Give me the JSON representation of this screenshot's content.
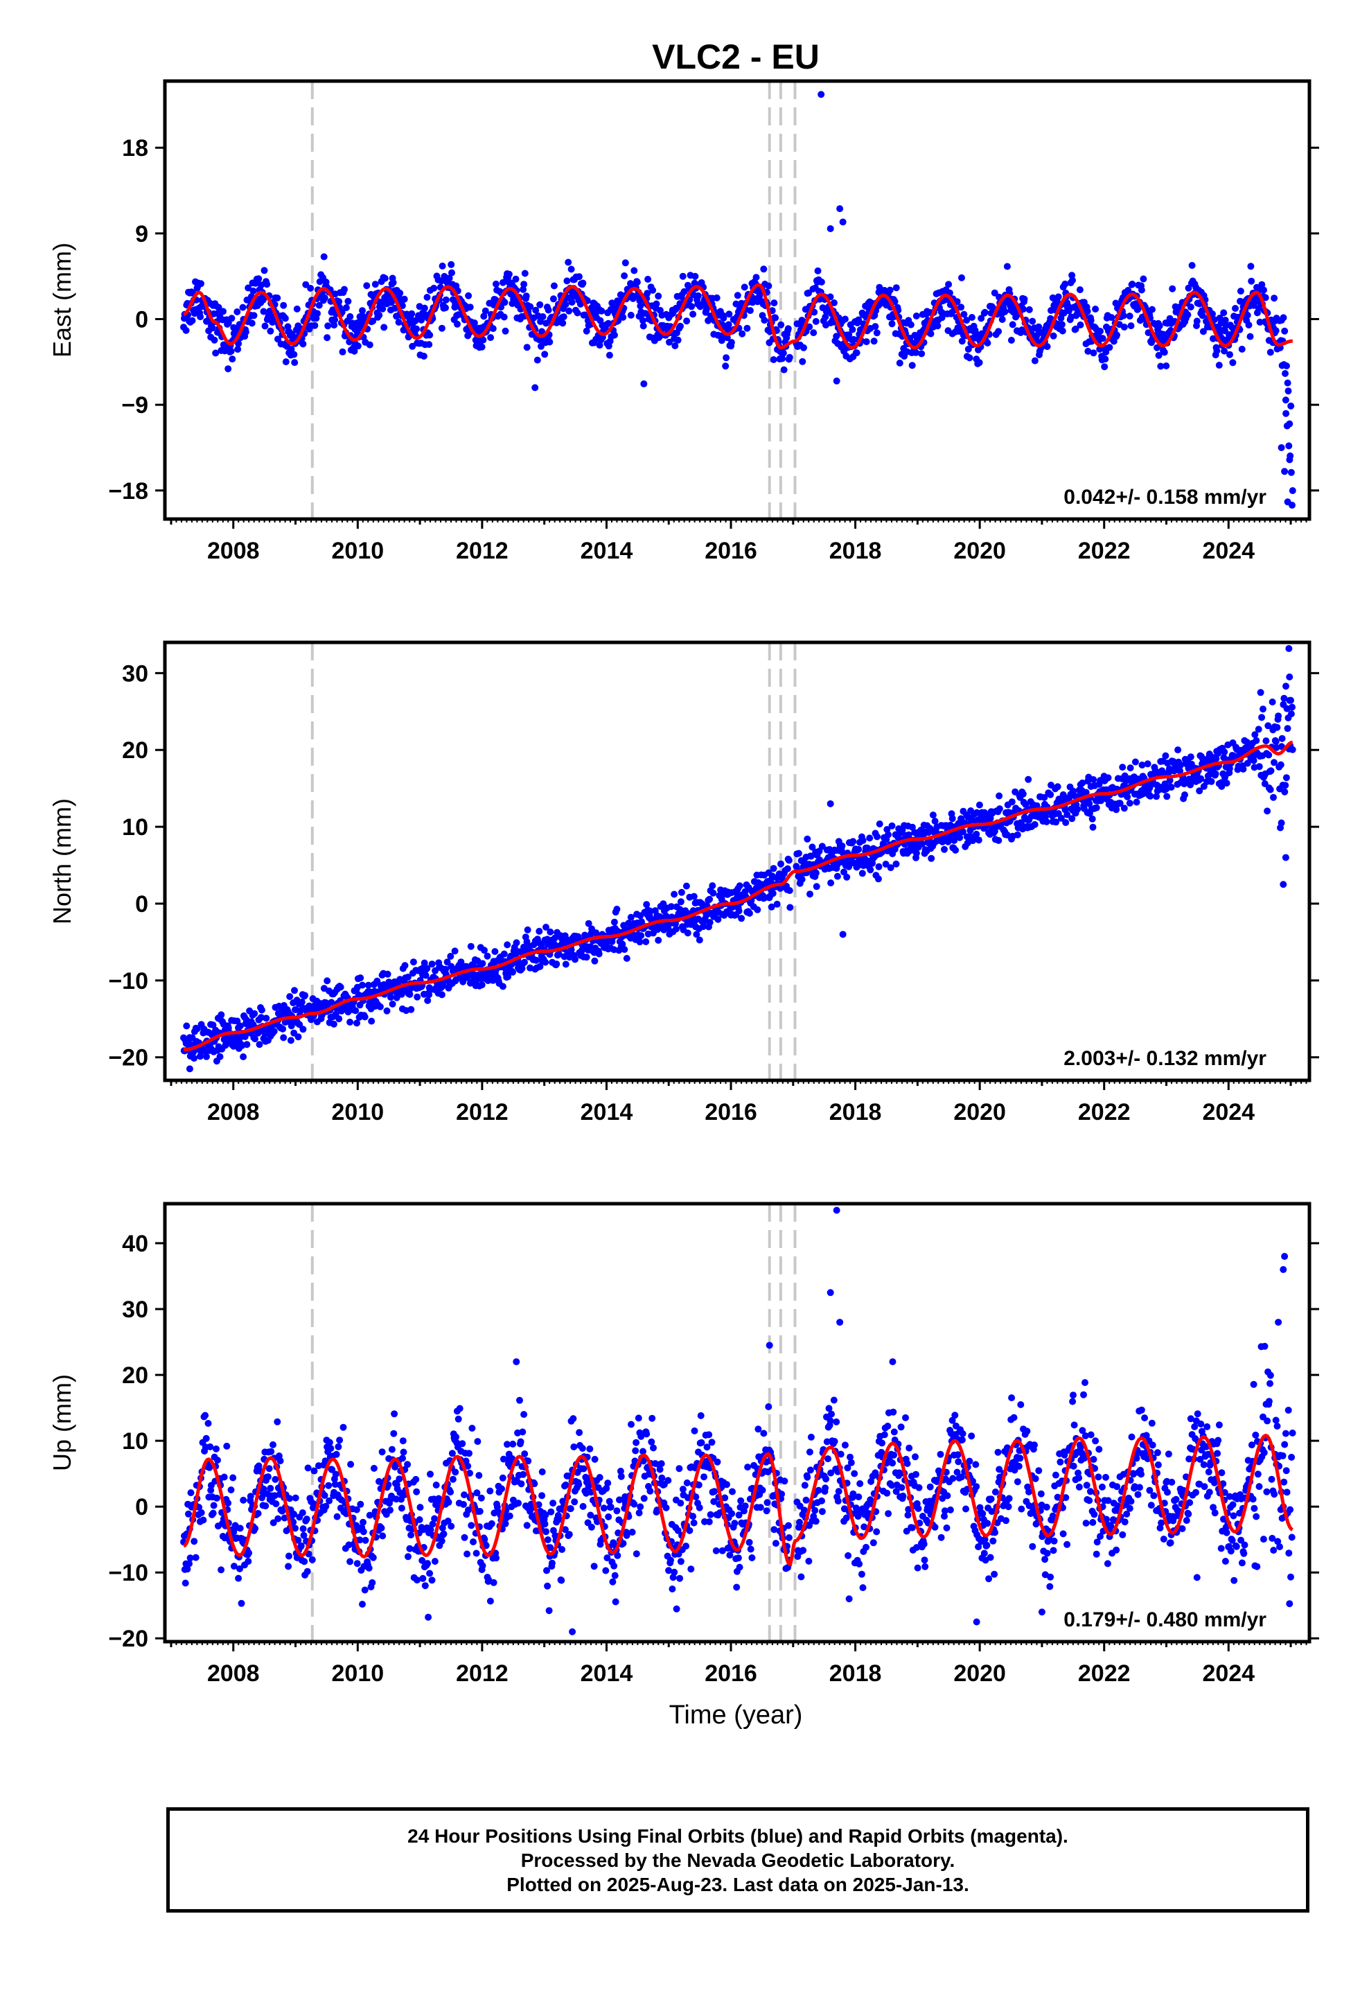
{
  "figure": {
    "title": "VLC2 - EU",
    "x_axis_label": "Time (year)"
  },
  "footer": {
    "line1": "24 Hour Positions Using Final Orbits (blue) and Rapid Orbits (magenta).",
    "line2": "Processed by the Nevada Geodetic Laboratory.",
    "line3": "Plotted on 2025-Aug-23. Last data on 2025-Jan-13."
  },
  "colors": {
    "final_orbits": "#0000ff",
    "model": "#ff0000",
    "event_lines": "#c8c8c8"
  },
  "chart_data": [
    {
      "type": "scatter",
      "component": "east",
      "ylabel": "East (mm)",
      "xlim": [
        2006.9,
        2025.3
      ],
      "ylim": [
        -21,
        25
      ],
      "x_ticks": [
        2008,
        2010,
        2012,
        2014,
        2016,
        2018,
        2020,
        2022,
        2024
      ],
      "y_ticks": [
        -18,
        -9,
        0,
        9,
        18
      ],
      "rate_label": "0.042+/- 0.158 mm/yr",
      "event_lines": [
        2009.27,
        2016.62,
        2016.8,
        2017.03
      ],
      "series": [
        {
          "name": "Final Orbits",
          "color": "#0000ff",
          "data_start": 2007.2,
          "data_end": 2025.03,
          "amplitude_mm": 2.8,
          "scatter_mm": 1.3,
          "velocity_mm_yr": 0.042,
          "model_points": [
            [
              2007.2,
              0.5
            ],
            [
              2007.45,
              2.8
            ],
            [
              2007.7,
              -0.3
            ],
            [
              2007.95,
              -2.6
            ],
            [
              2008.45,
              2.8
            ],
            [
              2008.95,
              -2.6
            ],
            [
              2009.45,
              3.2
            ],
            [
              2009.95,
              -2.2
            ],
            [
              2010.45,
              3.2
            ],
            [
              2010.95,
              -2.0
            ],
            [
              2011.45,
              3.4
            ],
            [
              2011.95,
              -1.8
            ],
            [
              2012.45,
              3.2
            ],
            [
              2012.95,
              -1.8
            ],
            [
              2013.45,
              3.4
            ],
            [
              2013.95,
              -1.6
            ],
            [
              2014.45,
              3.2
            ],
            [
              2014.95,
              -1.6
            ],
            [
              2015.45,
              3.4
            ],
            [
              2015.95,
              -1.6
            ],
            [
              2016.45,
              3.6
            ],
            [
              2016.8,
              -3.0
            ],
            [
              2017.03,
              -2.3
            ],
            [
              2017.45,
              2.6
            ],
            [
              2017.95,
              -3.0
            ],
            [
              2018.45,
              2.5
            ],
            [
              2018.95,
              -3.0
            ],
            [
              2019.45,
              2.5
            ],
            [
              2019.95,
              -2.8
            ],
            [
              2020.45,
              2.5
            ],
            [
              2020.95,
              -2.8
            ],
            [
              2021.45,
              2.6
            ],
            [
              2021.95,
              -2.8
            ],
            [
              2022.45,
              2.6
            ],
            [
              2022.95,
              -2.8
            ],
            [
              2023.45,
              2.8
            ],
            [
              2023.95,
              -2.8
            ],
            [
              2024.45,
              2.8
            ],
            [
              2024.8,
              -2.7
            ],
            [
              2025.03,
              -2.3
            ]
          ]
        }
      ],
      "outliers": [
        [
          2017.45,
          23.6
        ],
        [
          2017.6,
          9.5
        ],
        [
          2017.75,
          11.6
        ],
        [
          2017.8,
          10.2
        ],
        [
          2024.95,
          -19.2
        ],
        [
          2024.9,
          -16.0
        ],
        [
          2024.85,
          -13.5
        ],
        [
          2024.98,
          -11.0
        ],
        [
          2024.92,
          -8.5
        ],
        [
          2017.7,
          -6.5
        ],
        [
          2014.6,
          -6.8
        ],
        [
          2012.85,
          -7.2
        ]
      ]
    },
    {
      "type": "scatter",
      "component": "north",
      "ylabel": "North (mm)",
      "xlim": [
        2006.9,
        2025.3
      ],
      "ylim": [
        -23,
        34
      ],
      "x_ticks": [
        2008,
        2010,
        2012,
        2014,
        2016,
        2018,
        2020,
        2022,
        2024
      ],
      "y_ticks": [
        -20,
        -10,
        0,
        10,
        20,
        30
      ],
      "rate_label": "2.003+/- 0.132 mm/yr",
      "event_lines": [
        2009.27,
        2016.62,
        2016.8,
        2017.03
      ],
      "series": [
        {
          "name": "Final Orbits",
          "color": "#0000ff",
          "data_start": 2007.2,
          "data_end": 2025.03,
          "amplitude_mm": 1.2,
          "scatter_mm": 1.3,
          "velocity_mm_yr": 2.003,
          "model_points": [
            [
              2007.2,
              -19.0
            ],
            [
              2008.0,
              -16.8
            ],
            [
              2009.0,
              -14.8
            ],
            [
              2009.27,
              -14.3
            ],
            [
              2010.0,
              -12.4
            ],
            [
              2011.0,
              -10.3
            ],
            [
              2012.0,
              -8.5
            ],
            [
              2013.0,
              -6.2
            ],
            [
              2014.0,
              -4.3
            ],
            [
              2015.0,
              -2.2
            ],
            [
              2016.0,
              0.0
            ],
            [
              2016.8,
              2.5
            ],
            [
              2017.03,
              4.2
            ],
            [
              2018.0,
              6.3
            ],
            [
              2019.0,
              8.4
            ],
            [
              2020.0,
              10.3
            ],
            [
              2021.0,
              12.3
            ],
            [
              2022.0,
              14.3
            ],
            [
              2023.0,
              16.5
            ],
            [
              2024.0,
              18.4
            ],
            [
              2024.6,
              20.5
            ],
            [
              2024.8,
              19.5
            ],
            [
              2025.03,
              21.0
            ]
          ]
        }
      ],
      "outliers": [
        [
          2024.97,
          33.2
        ],
        [
          2024.98,
          29.5
        ],
        [
          2024.92,
          6.0
        ],
        [
          2024.88,
          2.5
        ],
        [
          2024.85,
          10.5
        ],
        [
          2017.8,
          -4.0
        ],
        [
          2016.95,
          -0.5
        ],
        [
          2017.6,
          13.0
        ],
        [
          2007.3,
          -21.5
        ]
      ]
    },
    {
      "type": "scatter",
      "component": "up",
      "ylabel": "Up (mm)",
      "xlim": [
        2006.9,
        2025.3
      ],
      "ylim": [
        -20.5,
        46
      ],
      "x_ticks": [
        2008,
        2010,
        2012,
        2014,
        2016,
        2018,
        2020,
        2022,
        2024
      ],
      "y_ticks": [
        -20,
        -10,
        0,
        10,
        20,
        30,
        40
      ],
      "rate_label": "0.179+/- 0.480 mm/yr",
      "event_lines": [
        2009.27,
        2016.62,
        2016.8,
        2017.03
      ],
      "series": [
        {
          "name": "Final Orbits",
          "color": "#0000ff",
          "data_start": 2007.2,
          "data_end": 2025.03,
          "amplitude_mm": 7.5,
          "scatter_mm": 3.8,
          "velocity_mm_yr": 0.179,
          "model_points": [
            [
              2007.2,
              -6.0
            ],
            [
              2007.6,
              7.2
            ],
            [
              2008.1,
              -7.4
            ],
            [
              2008.6,
              7.4
            ],
            [
              2009.1,
              -7.4
            ],
            [
              2009.6,
              7.2
            ],
            [
              2010.1,
              -7.6
            ],
            [
              2010.6,
              7.2
            ],
            [
              2011.1,
              -7.4
            ],
            [
              2011.6,
              7.6
            ],
            [
              2012.1,
              -7.4
            ],
            [
              2012.6,
              7.6
            ],
            [
              2013.1,
              -7.2
            ],
            [
              2013.6,
              7.6
            ],
            [
              2014.1,
              -7.0
            ],
            [
              2014.6,
              7.8
            ],
            [
              2015.1,
              -6.8
            ],
            [
              2015.6,
              7.8
            ],
            [
              2016.1,
              -6.6
            ],
            [
              2016.6,
              8.0
            ],
            [
              2016.95,
              -8.8
            ],
            [
              2017.03,
              -5.2
            ],
            [
              2017.6,
              9.0
            ],
            [
              2018.1,
              -4.8
            ],
            [
              2018.6,
              9.6
            ],
            [
              2019.1,
              -4.6
            ],
            [
              2019.6,
              10.0
            ],
            [
              2020.1,
              -4.4
            ],
            [
              2020.6,
              10.0
            ],
            [
              2021.1,
              -4.4
            ],
            [
              2021.6,
              10.4
            ],
            [
              2022.1,
              -4.2
            ],
            [
              2022.6,
              10.4
            ],
            [
              2023.1,
              -4.0
            ],
            [
              2023.6,
              10.6
            ],
            [
              2024.1,
              -3.8
            ],
            [
              2024.6,
              10.8
            ],
            [
              2025.03,
              -3.5
            ]
          ]
        }
      ],
      "outliers": [
        [
          2017.7,
          45.0
        ],
        [
          2017.6,
          32.5
        ],
        [
          2016.62,
          24.5
        ],
        [
          2017.75,
          28.0
        ],
        [
          2018.6,
          22.0
        ],
        [
          2024.88,
          36.0
        ],
        [
          2024.9,
          38.0
        ],
        [
          2024.8,
          28.0
        ],
        [
          2012.55,
          22.0
        ],
        [
          2013.45,
          -19.0
        ],
        [
          2019.95,
          -17.5
        ],
        [
          2017.9,
          -14.0
        ],
        [
          2021.0,
          -16.0
        ]
      ]
    }
  ]
}
